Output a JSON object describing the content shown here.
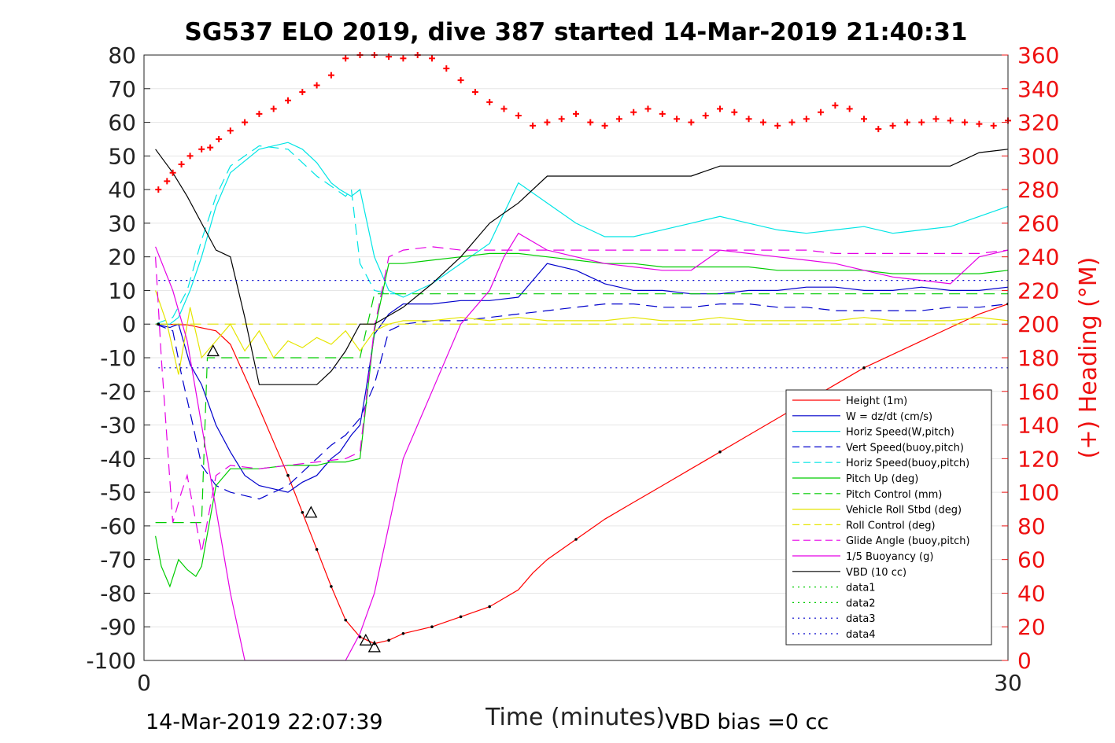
{
  "chart_data": {
    "type": "line",
    "title": "SG537 ELO 2019, dive 387 started 14-Mar-2019 21:40:31",
    "xlabel": "Time (minutes)",
    "ylabel_right": "(+) Heading (°M)",
    "xlim": [
      0,
      30
    ],
    "ylim": [
      -100,
      80
    ],
    "ylim_right": [
      0,
      360
    ],
    "x_ticks": [
      "0",
      "30"
    ],
    "y_ticks": [
      "80",
      "70",
      "60",
      "50",
      "40",
      "30",
      "20",
      "10",
      "0",
      "-10",
      "-20",
      "-30",
      "-40",
      "-50",
      "-60",
      "-70",
      "-80",
      "-90",
      "-100"
    ],
    "y_right_ticks": [
      "360",
      "340",
      "320",
      "300",
      "280",
      "260",
      "240",
      "220",
      "200",
      "180",
      "160",
      "140",
      "120",
      "100",
      "80",
      "60",
      "40",
      "20",
      "0"
    ],
    "grid": "horizontal",
    "legend_position": "lower-right",
    "footer_left": "14-Mar-2019 22:07:39",
    "footer_right": "VBD bias =0 cc",
    "colors": {
      "red": "#ff0000",
      "blue": "#0000cc",
      "cyan": "#00e5e5",
      "green": "#00cc00",
      "yellow": "#e5e500",
      "magenta": "#e500e5",
      "black": "#000000"
    },
    "series": [
      {
        "name": "Height (1m)",
        "color": "#ff0000",
        "dash": "solid",
        "x": [
          0.5,
          1.5,
          2.5,
          3,
          4,
          5,
          5.5,
          6,
          6.5,
          7,
          7.5,
          8,
          8.5,
          9,
          10,
          11,
          12,
          13,
          13.5,
          14,
          15,
          16,
          17,
          18,
          19,
          20,
          21,
          22,
          23,
          24,
          25,
          26,
          27,
          28,
          29,
          30
        ],
        "y": [
          0,
          -0.2,
          -2,
          -6,
          -25,
          -45,
          -56,
          -67,
          -78,
          -88,
          -93,
          -95,
          -94,
          -92,
          -90,
          -87,
          -84,
          -79,
          -74,
          -70,
          -64,
          -58,
          -53,
          -48,
          -43,
          -38,
          -33,
          -28,
          -23,
          -18,
          -13,
          -9,
          -5,
          -1,
          3,
          6
        ]
      },
      {
        "name": "W = dz/dt (cm/s)",
        "color": "#0000cc",
        "dash": "solid",
        "x": [
          0.4,
          0.9,
          1.2,
          1.6,
          2,
          2.5,
          3,
          3.5,
          4,
          4.5,
          5,
          5.5,
          6,
          6.5,
          6.8,
          7.2,
          7.5,
          7.7,
          8,
          8.5,
          9,
          10,
          11,
          12,
          13,
          13.5,
          14,
          15,
          16,
          17,
          18,
          19,
          20,
          21,
          22,
          23,
          24,
          25,
          26,
          27,
          28,
          29,
          30
        ],
        "y": [
          0,
          -1,
          0,
          -12,
          -18,
          -30,
          -38,
          -45,
          -48,
          -49,
          -50,
          -47,
          -45,
          -40,
          -38,
          -33,
          -30,
          -20,
          -3,
          3,
          6,
          6,
          7,
          7,
          8,
          13,
          18,
          16,
          12,
          10,
          10,
          9,
          9,
          10,
          10,
          11,
          11,
          10,
          10,
          11,
          10,
          10,
          11
        ]
      },
      {
        "name": "Horiz Speed(W,pitch)",
        "color": "#00e5e5",
        "dash": "solid",
        "x": [
          0.4,
          0.9,
          1.2,
          1.6,
          2,
          2.5,
          3,
          4,
          5,
          5.5,
          6,
          6.5,
          6.8,
          7.2,
          7.5,
          8,
          8.5,
          9,
          10,
          11,
          12,
          13,
          14,
          15,
          16,
          17,
          18,
          19,
          20,
          21,
          22,
          23,
          24,
          25,
          26,
          27,
          28,
          29,
          30
        ],
        "y": [
          0,
          0,
          2,
          10,
          20,
          35,
          45,
          52,
          54,
          52,
          48,
          42,
          40,
          38,
          40,
          20,
          10,
          8,
          12,
          18,
          24,
          42,
          36,
          30,
          26,
          26,
          28,
          30,
          32,
          30,
          28,
          27,
          28,
          29,
          27,
          28,
          29,
          32,
          35
        ]
      },
      {
        "name": "Vert Speed(buoy,pitch)",
        "color": "#0000cc",
        "dash": "dashed",
        "x": [
          0.4,
          1,
          1.3,
          1.7,
          2,
          2.5,
          3,
          4,
          5,
          6,
          6.5,
          7,
          7.5,
          8,
          8.5,
          9,
          10,
          11,
          12,
          13,
          14,
          15,
          16,
          17,
          18,
          19,
          20,
          21,
          22,
          23,
          24,
          25,
          26,
          27,
          28,
          29,
          30
        ],
        "y": [
          0,
          -2,
          -15,
          -30,
          -42,
          -48,
          -50,
          -52,
          -48,
          -40,
          -36,
          -33,
          -28,
          -18,
          -2,
          0,
          1,
          1,
          2,
          3,
          4,
          5,
          6,
          6,
          5,
          5,
          6,
          6,
          5,
          5,
          4,
          4,
          4,
          4,
          5,
          5,
          6
        ]
      },
      {
        "name": "Horiz Speed(buoy,pitch)",
        "color": "#00e5e5",
        "dash": "dashed",
        "x": [
          0.4,
          1,
          1.5,
          2,
          2.5,
          3,
          4,
          5,
          5.5,
          6,
          6.5,
          7,
          7.2,
          7.5,
          8,
          8.5,
          9
        ],
        "y": [
          0,
          2,
          10,
          25,
          38,
          47,
          53,
          52,
          48,
          44,
          41,
          38,
          40,
          18,
          10,
          9,
          9
        ]
      },
      {
        "name": "Pitch Up (deg)",
        "color": "#00cc00",
        "dash": "solid",
        "x": [
          0.4,
          0.6,
          0.9,
          1.2,
          1.5,
          1.8,
          2,
          2.5,
          3,
          4,
          5,
          6,
          6.5,
          7,
          7.5,
          8,
          8.5,
          9,
          10,
          11,
          12,
          13,
          14,
          15,
          16,
          17,
          18,
          19,
          20,
          21,
          22,
          23,
          24,
          25,
          26,
          27,
          28,
          29,
          30
        ],
        "y": [
          -63,
          -72,
          -78,
          -70,
          -73,
          -75,
          -72,
          -48,
          -43,
          -43,
          -42,
          -42,
          -41,
          -41,
          -40,
          -2,
          18,
          18,
          19,
          20,
          21,
          21,
          20,
          19,
          18,
          18,
          17,
          17,
          17,
          17,
          16,
          16,
          16,
          16,
          15,
          15,
          15,
          15,
          16
        ]
      },
      {
        "name": "Pitch Control (mm)",
        "color": "#00cc00",
        "dash": "dashed",
        "x": [
          0.4,
          2,
          2.2,
          3,
          4,
          5,
          6,
          7,
          7.5,
          8,
          9,
          10,
          12,
          14,
          16,
          18,
          20,
          22,
          24,
          26,
          28,
          30
        ],
        "y": [
          -59,
          -59,
          -10,
          -10,
          -10,
          -10,
          -10,
          -10,
          -10,
          9,
          9,
          9,
          9,
          9,
          9,
          9,
          9,
          9,
          9,
          9,
          9,
          9
        ]
      },
      {
        "name": "Vehicle Roll Stbd (deg)",
        "color": "#e5e500",
        "dash": "solid",
        "x": [
          0.4,
          0.8,
          1.2,
          1.6,
          2,
          2.5,
          3,
          3.5,
          4,
          4.5,
          5,
          5.5,
          6,
          6.5,
          7,
          7.5,
          8,
          8.5,
          9,
          10,
          11,
          12,
          13,
          14,
          15,
          16,
          17,
          18,
          19,
          20,
          21,
          22,
          23,
          24,
          25,
          26,
          27,
          28,
          29,
          30
        ],
        "y": [
          10,
          0,
          -15,
          5,
          -10,
          -5,
          0,
          -8,
          -2,
          -10,
          -5,
          -7,
          -4,
          -6,
          -2,
          -8,
          -2,
          0,
          1,
          1,
          2,
          1,
          2,
          1,
          1,
          1,
          2,
          1,
          1,
          2,
          1,
          1,
          1,
          1,
          2,
          1,
          1,
          1,
          2,
          1
        ]
      },
      {
        "name": "Roll Control (deg)",
        "color": "#e5e500",
        "dash": "dashed",
        "x": [
          0.4,
          1,
          2,
          3,
          4,
          5,
          6,
          7,
          8,
          9,
          10,
          12,
          14,
          16,
          18,
          20,
          22,
          24,
          26,
          28,
          30
        ],
        "y": [
          0,
          0,
          0,
          0,
          0,
          0,
          0,
          0,
          0,
          0,
          0,
          0,
          0,
          0,
          0,
          0,
          0,
          0,
          0,
          0,
          0
        ]
      },
      {
        "name": "Glide Angle (buoy,pitch)",
        "color": "#e500e5",
        "dash": "dashed",
        "x": [
          0.4,
          0.6,
          1,
          1.3,
          1.5,
          2,
          2.5,
          3,
          4,
          5,
          6,
          7,
          7.5,
          8,
          8.5,
          9,
          10,
          11,
          12,
          13,
          14,
          15,
          16,
          17,
          18,
          19,
          20,
          21,
          22,
          23,
          24,
          25,
          26,
          27,
          28,
          29,
          30
        ],
        "y": [
          20,
          -10,
          -59,
          -50,
          -45,
          -68,
          -45,
          -42,
          -43,
          -42,
          -41,
          -40,
          -38,
          -1,
          20,
          22,
          23,
          22,
          22,
          22,
          22,
          22,
          22,
          22,
          22,
          22,
          22,
          22,
          22,
          22,
          21,
          21,
          21,
          21,
          21,
          21,
          22
        ]
      },
      {
        "name": "1/5 Buoyancy (g)",
        "color": "#e500e5",
        "dash": "solid",
        "x": [
          0.4,
          1,
          1.5,
          2,
          2.5,
          3,
          3.5,
          4,
          5,
          6,
          6.5,
          7,
          7.5,
          8,
          8.5,
          9,
          10,
          11,
          12,
          12.5,
          13,
          14,
          15,
          16,
          17,
          18,
          19,
          20,
          21,
          22,
          23,
          24,
          25,
          26,
          27,
          28,
          29,
          30
        ],
        "y": [
          23,
          10,
          -5,
          -30,
          -55,
          -80,
          -100,
          -100,
          -100,
          -100,
          -100,
          -100,
          -92,
          -80,
          -60,
          -40,
          -20,
          0,
          10,
          20,
          27,
          22,
          20,
          18,
          17,
          16,
          16,
          22,
          21,
          20,
          19,
          18,
          16,
          14,
          13,
          12,
          20,
          22
        ]
      },
      {
        "name": "VBD (10 cc)",
        "color": "#000000",
        "dash": "solid",
        "x": [
          0.4,
          1,
          1.5,
          2,
          2.5,
          3,
          3.5,
          4,
          4.5,
          5,
          5.5,
          6,
          6.5,
          7,
          7.5,
          8,
          9,
          10,
          11,
          12,
          13,
          14,
          15,
          16,
          17,
          18,
          19,
          20,
          21,
          22,
          23,
          24,
          25,
          26,
          27,
          28,
          29,
          30
        ],
        "y": [
          52,
          45,
          38,
          30,
          22,
          20,
          2,
          -18,
          -18,
          -18,
          -18,
          -18,
          -14,
          -8,
          0,
          0,
          5,
          12,
          20,
          30,
          36,
          44,
          44,
          44,
          44,
          44,
          44,
          47,
          47,
          47,
          47,
          47,
          47,
          47,
          47,
          47,
          51,
          52
        ]
      },
      {
        "name": "data1",
        "color": "#00cc00",
        "dash": "dotted",
        "x": [],
        "y": []
      },
      {
        "name": "data2",
        "color": "#00cc00",
        "dash": "dotted",
        "x": [],
        "y": []
      },
      {
        "name": "data3",
        "color": "#0000cc",
        "dash": "dotted",
        "x": [
          0.5,
          30
        ],
        "y": [
          13,
          13
        ]
      },
      {
        "name": "data4",
        "color": "#0000cc",
        "dash": "dotted",
        "x": [
          0.5,
          30
        ],
        "y": [
          -13,
          -13
        ]
      }
    ],
    "heading_series": {
      "color": "#ff0000",
      "marker": "+",
      "x": [
        0.5,
        0.8,
        1,
        1.3,
        1.6,
        2,
        2.3,
        2.6,
        3,
        3.5,
        4,
        4.5,
        5,
        5.5,
        6,
        6.5,
        7,
        7.5,
        8,
        8.5,
        9,
        9.5,
        10,
        10.5,
        11,
        11.5,
        12,
        12.5,
        13,
        13.5,
        14,
        14.5,
        15,
        15.5,
        16,
        16.5,
        17,
        17.5,
        18,
        18.5,
        19,
        19.5,
        20,
        20.5,
        21,
        21.5,
        22,
        22.5,
        23,
        23.5,
        24,
        24.5,
        25,
        25.5,
        26,
        26.5,
        27,
        27.5,
        28,
        28.5,
        29,
        29.5,
        30
      ],
      "y": [
        280,
        285,
        290,
        295,
        300,
        304,
        305,
        310,
        315,
        320,
        325,
        328,
        333,
        338,
        342,
        348,
        358,
        360,
        360,
        359,
        358,
        360,
        358,
        352,
        345,
        338,
        332,
        328,
        324,
        318,
        320,
        322,
        325,
        320,
        318,
        322,
        326,
        328,
        325,
        322,
        320,
        324,
        328,
        326,
        322,
        320,
        318,
        320,
        322,
        326,
        330,
        328,
        322,
        316,
        318,
        320,
        320,
        322,
        321,
        320,
        319,
        318,
        321
      ]
    },
    "triangle_markers": {
      "x": [
        2.4,
        5.8,
        7.7,
        8
      ],
      "y": [
        -8,
        -56,
        -94,
        -96
      ]
    }
  }
}
